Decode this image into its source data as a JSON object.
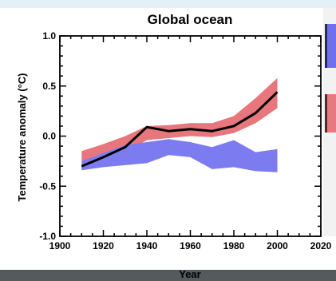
{
  "chart_data": {
    "type": "line",
    "title": "Global ocean",
    "xlabel": "Year",
    "ylabel": "Temperature anomaly (°C)",
    "xlim": [
      1900,
      2020
    ],
    "ylim": [
      -1.0,
      1.0
    ],
    "x_ticks": [
      1900,
      1920,
      1940,
      1960,
      1980,
      2000,
      2020
    ],
    "y_ticks": [
      1.0,
      0.5,
      0.0,
      -0.5,
      -1.0
    ],
    "y_tick_labels": [
      "1.0",
      "0.5",
      "0.0",
      "-0.5",
      "-1.0"
    ],
    "series": [
      {
        "type": "line",
        "color": "#000000",
        "x": [
          1910,
          1920,
          1930,
          1940,
          1950,
          1960,
          1970,
          1980,
          1990,
          2000
        ],
        "y": [
          -0.3,
          -0.21,
          -0.11,
          0.09,
          0.05,
          0.07,
          0.05,
          0.1,
          0.23,
          0.44
        ]
      },
      {
        "type": "band",
        "color": "#e8777d",
        "x": [
          1910,
          1920,
          1930,
          1940,
          1950,
          1960,
          1970,
          1980,
          1990,
          2000
        ],
        "lower": [
          -0.33,
          -0.26,
          -0.17,
          -0.04,
          -0.02,
          0.0,
          -0.01,
          0.03,
          0.13,
          0.28
        ],
        "upper": [
          -0.15,
          -0.08,
          0.0,
          0.1,
          0.11,
          0.13,
          0.13,
          0.2,
          0.38,
          0.58
        ]
      },
      {
        "type": "band",
        "color": "#7c7cf0",
        "x": [
          1910,
          1920,
          1930,
          1940,
          1950,
          1960,
          1970,
          1980,
          1990,
          2000
        ],
        "lower": [
          -0.34,
          -0.31,
          -0.29,
          -0.27,
          -0.19,
          -0.21,
          -0.33,
          -0.31,
          -0.35,
          -0.36
        ],
        "upper": [
          -0.25,
          -0.17,
          -0.09,
          -0.06,
          -0.03,
          -0.06,
          -0.11,
          -0.04,
          -0.16,
          -0.13
        ]
      }
    ]
  }
}
